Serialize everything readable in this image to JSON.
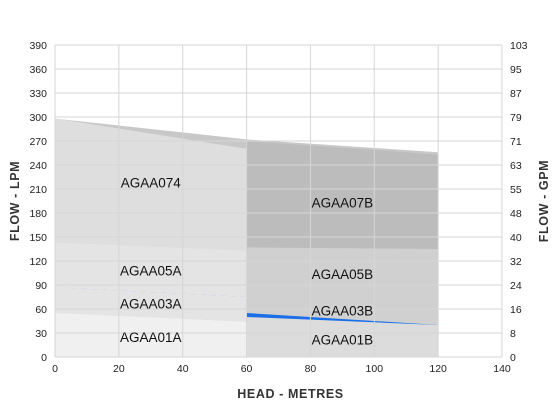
{
  "chart_data": {
    "type": "area",
    "xlabel": "HEAD - METRES",
    "ylabel": "FLOW - LPM",
    "y2label": "FLOW - GPM",
    "xlim": [
      0,
      140
    ],
    "ylim": [
      0,
      390
    ],
    "x_ticks": [
      "0",
      "20",
      "40",
      "60",
      "80",
      "100",
      "120",
      "140"
    ],
    "y_ticks": [
      "0",
      "30",
      "60",
      "90",
      "120",
      "150",
      "180",
      "210",
      "240",
      "270",
      "300",
      "330",
      "360",
      "390"
    ],
    "y2_ticks": [
      "0",
      "8",
      "16",
      "24",
      "32",
      "40",
      "48",
      "55",
      "63",
      "71",
      "79",
      "87",
      "95",
      "103"
    ],
    "grid": true,
    "regions": [
      {
        "name": "AGAA01A",
        "color": "#f0f0f0",
        "x": [
          0,
          60
        ],
        "y_low": [
          0,
          0
        ],
        "y_high": [
          55,
          44
        ],
        "label_at": [
          30,
          25
        ]
      },
      {
        "name": "AGAA03A",
        "color": "#e4e4e4",
        "x": [
          0,
          60
        ],
        "y_low": [
          55,
          44
        ],
        "y_high": [
          87,
          75
        ],
        "label_at": [
          30,
          67
        ]
      },
      {
        "name": "AGAA05A",
        "color": "#e4e4e4",
        "x": [
          0,
          60
        ],
        "y_low": [
          87,
          75
        ],
        "y_high": [
          143,
          133
        ],
        "label_at": [
          30,
          108
        ]
      },
      {
        "name": "AGAA074",
        "color": "#dedede",
        "x": [
          0,
          60
        ],
        "y_low": [
          143,
          133
        ],
        "y_high": [
          298,
          260
        ],
        "label_at": [
          30,
          218
        ]
      },
      {
        "name": "AGAA01B",
        "color": "#dcdcdc",
        "x": [
          60,
          120
        ],
        "y_low": [
          0,
          0
        ],
        "y_high": [
          55,
          40
        ],
        "label_at": [
          90,
          22
        ]
      },
      {
        "name": "AGAA03B",
        "color": "#1a6fe8",
        "x": [
          60,
          120
        ],
        "y_low": [
          50,
          40
        ],
        "y_high": [
          75,
          72
        ],
        "label_at": [
          90,
          58
        ],
        "label_color": "#ffffff"
      },
      {
        "name": "AGAA05B",
        "color": "#d0d0d0",
        "x": [
          60,
          120
        ],
        "y_low": [
          55,
          40
        ],
        "y_high": [
          137,
          135
        ],
        "label_at": [
          90,
          104
        ]
      },
      {
        "name": "AGAA07B",
        "color": "#bcbcbc",
        "x": [
          60,
          120
        ],
        "y_low": [
          137,
          135
        ],
        "y_high": [
          270,
          253
        ],
        "label_at": [
          90,
          193
        ]
      }
    ],
    "shadows": [
      {
        "color": "#c8c8c8",
        "x": [
          0,
          60,
          120
        ],
        "y_low": [
          298,
          260,
          253
        ],
        "y_high": [
          298,
          272,
          256
        ]
      },
      {
        "color": "#cfcfcf",
        "x": [
          0,
          60,
          120
        ],
        "y_low": [
          143,
          133,
          135
        ],
        "y_high": [
          145,
          138,
          137
        ]
      },
      {
        "color": "#1a6fe8",
        "x": [
          0,
          60
        ],
        "y_low": [
          87,
          75
        ],
        "y_high": [
          87,
          78
        ]
      },
      {
        "color": "#cfcfcf",
        "x": [
          0,
          60
        ],
        "y_low": [
          55,
          44
        ],
        "y_high": [
          60,
          50
        ]
      }
    ]
  }
}
